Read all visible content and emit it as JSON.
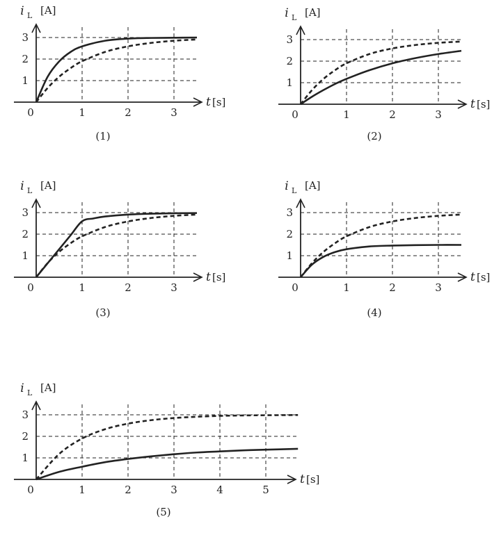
{
  "colors": {
    "ink": "#222222",
    "grid": "#222222",
    "background": "#ffffff"
  },
  "chart_data": [
    {
      "type": "line",
      "panel_label": "(1)",
      "ylabel_symbol": "i",
      "ylabel_sub": "L",
      "ylabel_unit": "[A]",
      "xlabel_symbol": "t",
      "xlabel_unit": "[s]",
      "origin_label": "0",
      "x_ticks": [
        "1",
        "2",
        "3"
      ],
      "y_ticks": [
        "1",
        "2",
        "3"
      ],
      "xlim": [
        0,
        3.5
      ],
      "ylim": [
        0,
        3
      ],
      "grid": true,
      "series": [
        {
          "style": "solid",
          "x": [
            0,
            0.25,
            0.5,
            0.75,
            1.0,
            1.5,
            2.0,
            2.5,
            3.0,
            3.5
          ],
          "y": [
            0,
            1.18,
            1.89,
            2.33,
            2.59,
            2.85,
            2.95,
            2.98,
            2.99,
            3.0
          ]
        },
        {
          "style": "dashed",
          "x": [
            0,
            0.25,
            0.5,
            0.75,
            1.0,
            1.5,
            2.0,
            2.5,
            3.0,
            3.5
          ],
          "y": [
            0,
            0.66,
            1.18,
            1.58,
            1.9,
            2.33,
            2.59,
            2.75,
            2.85,
            2.91
          ]
        }
      ]
    },
    {
      "type": "line",
      "panel_label": "(2)",
      "ylabel_symbol": "i",
      "ylabel_sub": "L",
      "ylabel_unit": "[A]",
      "xlabel_symbol": "t",
      "xlabel_unit": "[s]",
      "origin_label": "0",
      "x_ticks": [
        "1",
        "2",
        "3"
      ],
      "y_ticks": [
        "1",
        "2",
        "3"
      ],
      "xlim": [
        0,
        3.5
      ],
      "ylim": [
        0,
        3
      ],
      "grid": true,
      "series": [
        {
          "style": "solid",
          "x": [
            0,
            0.25,
            0.5,
            0.75,
            1.0,
            1.5,
            2.0,
            2.5,
            3.0,
            3.5
          ],
          "y": [
            0,
            0.35,
            0.66,
            0.94,
            1.18,
            1.58,
            1.9,
            2.14,
            2.33,
            2.48
          ]
        },
        {
          "style": "dashed",
          "x": [
            0,
            0.25,
            0.5,
            0.75,
            1.0,
            1.5,
            2.0,
            2.5,
            3.0,
            3.5
          ],
          "y": [
            0,
            0.66,
            1.18,
            1.58,
            1.9,
            2.33,
            2.59,
            2.75,
            2.85,
            2.91
          ]
        }
      ]
    },
    {
      "type": "line",
      "panel_label": "(3)",
      "ylabel_symbol": "i",
      "ylabel_sub": "L",
      "ylabel_unit": "[A]",
      "xlabel_symbol": "t",
      "xlabel_unit": "[s]",
      "origin_label": "0",
      "x_ticks": [
        "1",
        "2",
        "3"
      ],
      "y_ticks": [
        "1",
        "2",
        "3"
      ],
      "xlim": [
        0,
        3.5
      ],
      "ylim": [
        0,
        3
      ],
      "grid": true,
      "series": [
        {
          "style": "solid",
          "x": [
            0,
            0.25,
            0.5,
            0.75,
            1.0,
            1.25,
            1.5,
            2.0,
            2.5,
            3.0,
            3.5
          ],
          "y": [
            0,
            0.65,
            1.3,
            1.95,
            2.6,
            2.73,
            2.82,
            2.91,
            2.95,
            2.97,
            2.98
          ]
        },
        {
          "style": "dashed",
          "x": [
            0,
            0.25,
            0.5,
            0.75,
            1.0,
            1.5,
            2.0,
            2.5,
            3.0,
            3.5
          ],
          "y": [
            0,
            0.66,
            1.18,
            1.58,
            1.9,
            2.33,
            2.59,
            2.75,
            2.85,
            2.91
          ]
        }
      ]
    },
    {
      "type": "line",
      "panel_label": "(4)",
      "ylabel_symbol": "i",
      "ylabel_sub": "L",
      "ylabel_unit": "[A]",
      "xlabel_symbol": "t",
      "xlabel_unit": "[s]",
      "origin_label": "0",
      "x_ticks": [
        "1",
        "2",
        "3"
      ],
      "y_ticks": [
        "1",
        "2",
        "3"
      ],
      "xlim": [
        0,
        3.5
      ],
      "ylim": [
        0,
        3
      ],
      "grid": true,
      "series": [
        {
          "style": "solid",
          "x": [
            0,
            0.25,
            0.5,
            0.75,
            1.0,
            1.5,
            2.0,
            2.5,
            3.0,
            3.5
          ],
          "y": [
            0,
            0.59,
            0.95,
            1.17,
            1.3,
            1.43,
            1.47,
            1.49,
            1.5,
            1.5
          ]
        },
        {
          "style": "dashed",
          "x": [
            0,
            0.25,
            0.5,
            0.75,
            1.0,
            1.5,
            2.0,
            2.5,
            3.0,
            3.5
          ],
          "y": [
            0,
            0.66,
            1.18,
            1.58,
            1.9,
            2.33,
            2.59,
            2.75,
            2.85,
            2.91
          ]
        }
      ]
    },
    {
      "type": "line",
      "panel_label": "(5)",
      "ylabel_symbol": "i",
      "ylabel_sub": "L",
      "ylabel_unit": "[A]",
      "xlabel_symbol": "t",
      "xlabel_unit": "[s]",
      "origin_label": "0",
      "x_ticks": [
        "1",
        "2",
        "3",
        "4",
        "5"
      ],
      "y_ticks": [
        "1",
        "2",
        "3"
      ],
      "xlim": [
        0,
        5.7
      ],
      "ylim": [
        0,
        3
      ],
      "grid": true,
      "series": [
        {
          "style": "solid",
          "x": [
            0,
            0.5,
            1.0,
            1.5,
            2.0,
            2.5,
            3.0,
            3.5,
            4.0,
            4.5,
            5.0,
            5.7
          ],
          "y": [
            0,
            0.35,
            0.59,
            0.8,
            0.95,
            1.07,
            1.17,
            1.25,
            1.3,
            1.35,
            1.38,
            1.42
          ]
        },
        {
          "style": "dashed",
          "x": [
            0,
            0.5,
            1.0,
            1.5,
            2.0,
            2.5,
            3.0,
            3.5,
            4.0,
            4.5,
            5.0,
            5.7
          ],
          "y": [
            0,
            1.18,
            1.9,
            2.33,
            2.59,
            2.75,
            2.85,
            2.91,
            2.95,
            2.97,
            2.98,
            2.99
          ]
        }
      ]
    }
  ]
}
